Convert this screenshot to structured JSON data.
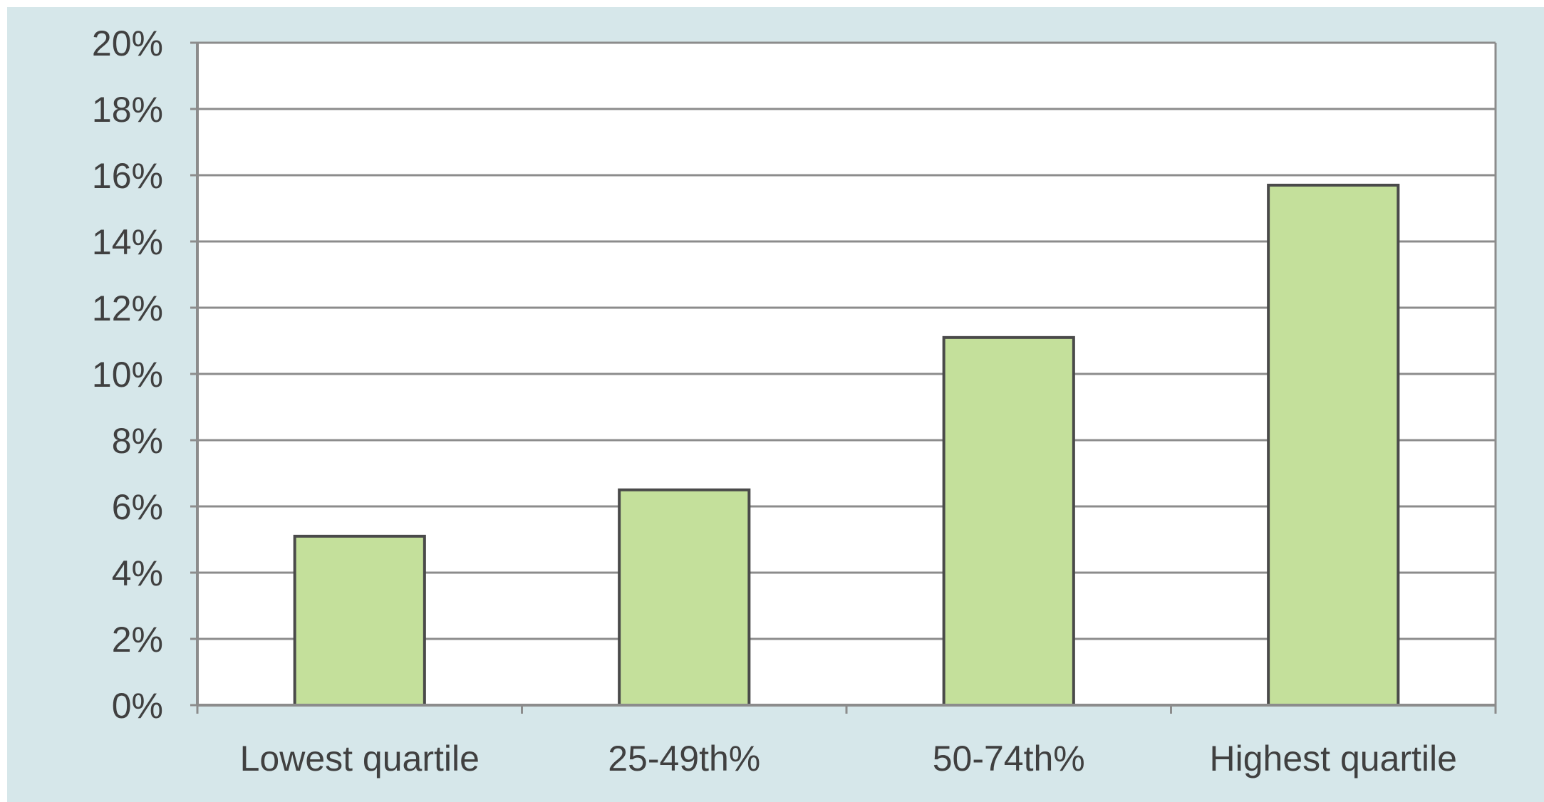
{
  "chart_data": {
    "type": "bar",
    "categories": [
      "Lowest quartile",
      "25-49th%",
      "50-74th%",
      "Highest quartile"
    ],
    "values": [
      5.1,
      6.5,
      11.1,
      15.7
    ],
    "y_ticks": [
      "0%",
      "2%",
      "4%",
      "6%",
      "8%",
      "10%",
      "12%",
      "14%",
      "16%",
      "18%",
      "20%"
    ],
    "ylim": [
      0,
      20
    ],
    "grid": true,
    "legend": "none",
    "title": "",
    "xlabel": "",
    "ylabel": "",
    "colors": {
      "bar_fill": "#c4e09b",
      "bar_stroke": "#4a4a4a",
      "frame_background": "#d6e7ea",
      "plot_background": "#ffffff",
      "gridline": "#8c8c8c",
      "text": "#404040"
    }
  }
}
